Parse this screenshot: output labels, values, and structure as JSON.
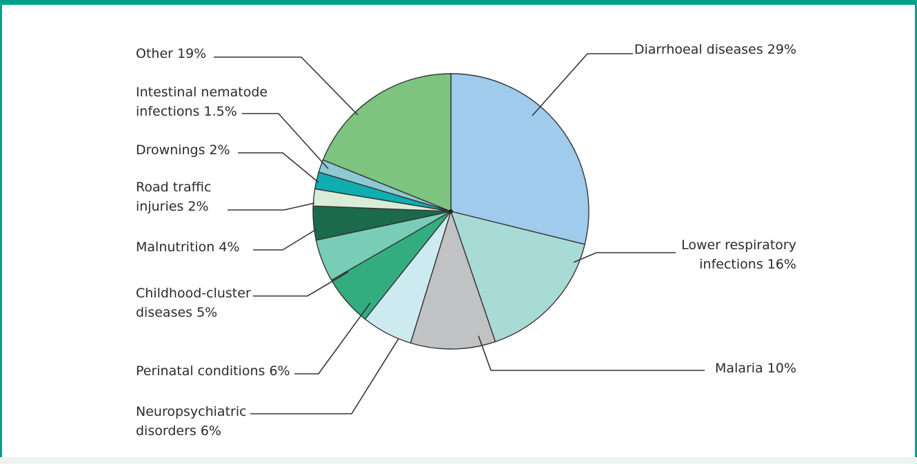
{
  "chart_data": {
    "type": "pie",
    "title": "",
    "slices": [
      {
        "label": [
          "Diarrhoeal diseases 29%"
        ],
        "value": 29,
        "color": "#9fcbec"
      },
      {
        "label": [
          "Lower respiratory",
          "infections 16%"
        ],
        "value": 16,
        "color": "#a9dbd6"
      },
      {
        "label": [
          "Malaria 10%"
        ],
        "value": 10,
        "color": "#c0c2c4"
      },
      {
        "label": [
          "Neuropsychiatric",
          "disorders 6%"
        ],
        "value": 6,
        "color": "#cdeaf1"
      },
      {
        "label": [
          "Perinatal conditions 6%"
        ],
        "value": 6,
        "color": "#33ad80"
      },
      {
        "label": [
          "Childhood-cluster",
          "diseases 5%"
        ],
        "value": 5,
        "color": "#79cdb6"
      },
      {
        "label": [
          "Malnutrition 4%"
        ],
        "value": 4,
        "color": "#1a6a4b"
      },
      {
        "label": [
          "Road traffic",
          "injuries 2%"
        ],
        "value": 2,
        "color": "#d9ecd7"
      },
      {
        "label": [
          "Drownings 2%"
        ],
        "value": 2,
        "color": "#10adb1"
      },
      {
        "label": [
          "Intestinal nematode",
          "infections 1.5%"
        ],
        "value": 1.5,
        "color": "#8cc9d2"
      },
      {
        "label": [
          "Other 19%"
        ],
        "value": 19,
        "color": "#7cc47f"
      }
    ]
  },
  "frame": {
    "accent_color": "#00a08a"
  }
}
